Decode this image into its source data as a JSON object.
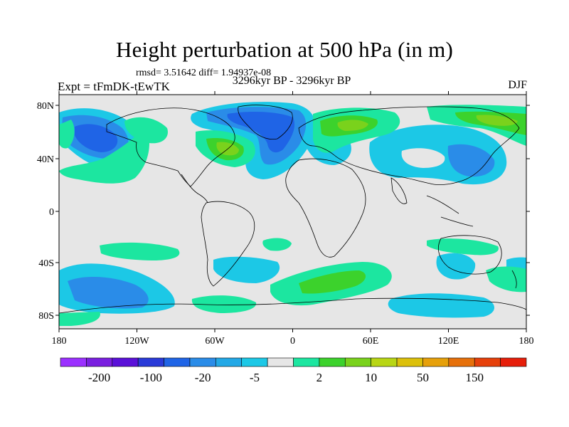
{
  "header": {
    "title": "Height perturbation at 500 hPa (in m)",
    "stats": "rmsd= 3.51642 diff= 1.94937e-08",
    "left_label": "Expt = tFmDK-tEwTK",
    "center_label": "3296kyr BP - 3296kyr BP",
    "right_label": "DJF"
  },
  "map": {
    "lat_ticks": [
      "80N",
      "40N",
      "0",
      "40S",
      "80S"
    ],
    "lon_ticks": [
      "180",
      "120W",
      "60W",
      "0",
      "60E",
      "120E",
      "180"
    ],
    "background_color": "#e6e6e6"
  },
  "colorbar": {
    "colors": [
      "#9b30ff",
      "#7a1fe0",
      "#5a10d8",
      "#2a3ad8",
      "#1f64e6",
      "#2a8ce8",
      "#22a8e6",
      "#1cc8e6",
      "#e6e6e6",
      "#1ce6a0",
      "#3cd22c",
      "#7ad21c",
      "#b8d614",
      "#dcc00a",
      "#e6a00a",
      "#e6700a",
      "#e6400a",
      "#e61e0a"
    ],
    "labels": [
      "-200",
      "-100",
      "-20",
      "-5",
      "2",
      "10",
      "50",
      "150"
    ]
  }
}
